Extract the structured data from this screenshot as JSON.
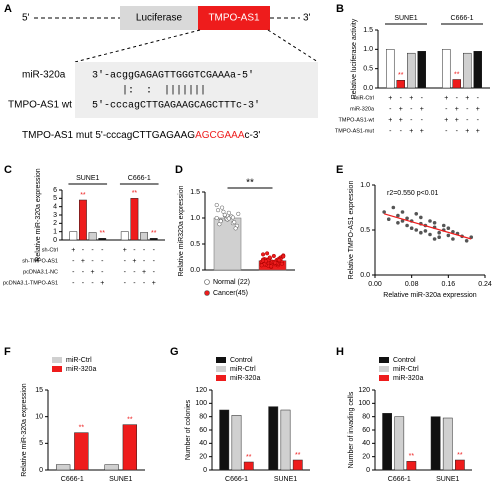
{
  "diagram": {
    "panel": "A",
    "five_prime": "5'",
    "three_prime": "3'",
    "box_left": "Luciferase",
    "box_right": "TMPO-AS1",
    "mirna_label": "miR-320a",
    "mirna_seq": "3'-acggGAGAGTTGGGTCGAAAa-5'",
    "pairing": "     |:  :  |||||||",
    "wt_label": "TMPO-AS1 wt",
    "wt_seq": "5'-cccagCTTGAGAAGCAGCTTTc-3'",
    "mut_prefix": "TMPO-AS1 mut 5'-cccagCTTGAGAAG",
    "mut_red": "AGCGAAA",
    "mut_suffix": "c-3'"
  },
  "chart_data": [
    {
      "type": "bar",
      "panel": "B",
      "y_label": "Relative luciferase activity",
      "categories": [
        "SUNE1",
        "C666-1"
      ],
      "series": [
        {
          "color": "#ffffff",
          "values": [
            1.0,
            1.0
          ]
        },
        {
          "color": "#ee1c1c",
          "values": [
            0.2,
            0.22
          ],
          "significance": [
            "**",
            "**"
          ]
        },
        {
          "color": "#d0d0d0",
          "values": [
            0.9,
            0.9
          ]
        },
        {
          "color": "#111111",
          "values": [
            0.95,
            0.95
          ]
        }
      ],
      "ylim": [
        0,
        1.5
      ],
      "yticks": [
        {
          "value": 0,
          "label": "0.0"
        },
        0.5,
        {
          "value": 1,
          "label": "1.0"
        },
        1.5
      ],
      "table": {
        "rows": [
          {
            "label": "miR-Ctrl",
            "signs": [
              "+",
              "-",
              "+",
              "-",
              "+",
              "-",
              "+",
              "-"
            ]
          },
          {
            "label": "miR-320a",
            "signs": [
              "-",
              "+",
              "-",
              "+",
              "-",
              "+",
              "-",
              "+"
            ]
          },
          {
            "label": "TMPO-AS1-wt",
            "signs": [
              "+",
              "+",
              "-",
              "-",
              "+",
              "+",
              "-",
              "-"
            ]
          },
          {
            "label": "TMPO-AS1-mut",
            "signs": [
              "-",
              "-",
              "+",
              "+",
              "-",
              "-",
              "+",
              "+"
            ]
          }
        ]
      }
    },
    {
      "type": "bar",
      "panel": "C",
      "y_label": "Relative miR-320a expression",
      "categories": [
        "SUNE1",
        "C666-1"
      ],
      "series": [
        {
          "color": "#ffffff",
          "values": [
            1.0,
            1.0
          ]
        },
        {
          "color": "#ee1c1c",
          "values": [
            4.8,
            5.0
          ],
          "significance": [
            "**",
            "**"
          ]
        },
        {
          "color": "#d0d0d0",
          "values": [
            0.9,
            0.9
          ]
        },
        {
          "color": "#111111",
          "values": [
            0.2,
            0.2
          ],
          "significance": [
            "**",
            "**"
          ]
        }
      ],
      "ylim": [
        0,
        6
      ],
      "yticks": [
        0,
        1,
        2,
        3,
        4,
        5,
        6
      ],
      "table": {
        "rows": [
          {
            "label": "sh-Ctrl",
            "signs": [
              "+",
              "-",
              "-",
              "-",
              "+",
              "-",
              "-",
              "-"
            ]
          },
          {
            "label": "sh-TMPO-AS1",
            "signs": [
              "-",
              "+",
              "-",
              "-",
              "-",
              "+",
              "-",
              "-"
            ]
          },
          {
            "label": "pcDNA3.1-NC",
            "signs": [
              "-",
              "-",
              "+",
              "-",
              "-",
              "-",
              "+",
              "-"
            ]
          },
          {
            "label": "pcDNA3.1-TMPO-AS1",
            "signs": [
              "-",
              "-",
              "-",
              "+",
              "-",
              "-",
              "-",
              "+"
            ]
          }
        ]
      }
    },
    {
      "type": "dotbar",
      "panel": "D",
      "y_label": "Relative miR320a expression",
      "significance": "**",
      "series": [
        {
          "name": "Normal (22)",
          "color": "#d0d0d0",
          "values": [
            1.0
          ],
          "points": [
            1.0,
            0.95,
            1.05,
            1.1,
            0.9,
            0.85,
            1.15,
            1.2,
            0.98,
            1.02,
            0.92,
            1.08,
            0.88,
            1.12,
            0.97,
            1.03,
            0.8,
            1.25,
            0.94,
            1.06,
            0.99,
            1.01
          ]
        },
        {
          "name": "Cancer(45)",
          "color": "#ee1c1c",
          "values": [
            0.18
          ],
          "points": [
            0.12,
            0.18,
            0.22,
            0.15,
            0.09,
            0.25,
            0.3,
            0.2,
            0.14,
            0.11,
            0.17,
            0.28,
            0.21,
            0.08,
            0.13,
            0.19,
            0.24,
            0.16,
            0.1,
            0.23,
            0.27,
            0.12,
            0.15,
            0.2,
            0.18,
            0.06,
            0.14,
            0.22,
            0.26,
            0.11,
            0.19,
            0.16,
            0.13,
            0.21,
            0.09,
            0.17,
            0.24,
            0.15,
            0.2,
            0.12,
            0.18,
            0.32,
            0.07,
            0.14,
            0.19
          ]
        }
      ],
      "ylim": [
        0,
        1.5
      ],
      "yticks": [
        {
          "value": 0,
          "label": "0.0"
        },
        0.5,
        {
          "value": 1,
          "label": "1.0"
        },
        1.5
      ]
    },
    {
      "type": "scatter",
      "panel": "E",
      "x_label": "Relative miR-320a expression",
      "y_label": "Relative TMPO-AS1 expression",
      "annotation": "r2=0.550 p<0.01",
      "color": "#555555",
      "fit_color": "#ee1c1c",
      "x": [
        0.02,
        0.03,
        0.04,
        0.05,
        0.05,
        0.06,
        0.07,
        0.07,
        0.08,
        0.08,
        0.09,
        0.09,
        0.1,
        0.1,
        0.11,
        0.11,
        0.12,
        0.12,
        0.13,
        0.13,
        0.14,
        0.14,
        0.15,
        0.15,
        0.16,
        0.17,
        0.17,
        0.18,
        0.19,
        0.2,
        0.21,
        0.06,
        0.1,
        0.13,
        0.16
      ],
      "y": [
        0.7,
        0.62,
        0.75,
        0.58,
        0.66,
        0.7,
        0.55,
        0.63,
        0.6,
        0.52,
        0.68,
        0.5,
        0.57,
        0.64,
        0.49,
        0.55,
        0.6,
        0.45,
        0.53,
        0.58,
        0.47,
        0.42,
        0.55,
        0.5,
        0.44,
        0.48,
        0.4,
        0.46,
        0.43,
        0.38,
        0.42,
        0.6,
        0.47,
        0.4,
        0.52
      ],
      "fit": {
        "x": [
          0.02,
          0.21
        ],
        "y": [
          0.68,
          0.4
        ]
      },
      "xlim": [
        0,
        0.24
      ],
      "xticks": [
        {
          "value": 0,
          "label": "0.00"
        },
        {
          "value": 0.08,
          "label": "0.08"
        },
        {
          "value": 0.16,
          "label": "0.16"
        },
        {
          "value": 0.24,
          "label": "0.24"
        }
      ],
      "ylim": [
        0,
        1
      ],
      "yticks": [
        {
          "value": 0,
          "label": "0.0"
        },
        0.5,
        {
          "value": 1,
          "label": "1.0"
        }
      ]
    },
    {
      "type": "bar",
      "panel": "F",
      "y_label": "Relative miR-320a expression",
      "categories": [
        "C666-1",
        "SUNE1"
      ],
      "series": [
        {
          "name": "miR-Ctrl",
          "color": "#d0d0d0",
          "values": [
            1,
            1
          ]
        },
        {
          "name": "miR-320a",
          "color": "#ee1c1c",
          "values": [
            7,
            8.5
          ],
          "significance": [
            "**",
            "**"
          ]
        }
      ],
      "ylim": [
        0,
        15
      ],
      "yticks": [
        0,
        5,
        10,
        15
      ]
    },
    {
      "type": "bar",
      "panel": "G",
      "y_label": "Number of colonies",
      "categories": [
        "C666-1",
        "SUNE1"
      ],
      "series": [
        {
          "name": "Control",
          "color": "#111111",
          "values": [
            90,
            95
          ]
        },
        {
          "name": "miR-Ctrl",
          "color": "#d0d0d0",
          "values": [
            82,
            90
          ]
        },
        {
          "name": "miR-320a",
          "color": "#ee1c1c",
          "values": [
            12,
            15
          ],
          "significance": [
            "**",
            "**"
          ]
        }
      ],
      "ylim": [
        0,
        120
      ],
      "yticks": [
        0,
        20,
        40,
        60,
        80,
        100,
        120
      ]
    },
    {
      "type": "bar",
      "panel": "H",
      "y_label": "Number of invading cells",
      "categories": [
        "C666-1",
        "SUNE1"
      ],
      "series": [
        {
          "name": "Control",
          "color": "#111111",
          "values": [
            85,
            80
          ]
        },
        {
          "name": "miR-Ctrl",
          "color": "#d0d0d0",
          "values": [
            80,
            78
          ]
        },
        {
          "name": "miR-320a",
          "color": "#ee1c1c",
          "values": [
            13,
            15
          ],
          "significance": [
            "**",
            "**"
          ]
        }
      ],
      "ylim": [
        0,
        120
      ],
      "yticks": [
        0,
        20,
        40,
        60,
        80,
        100,
        120
      ]
    }
  ]
}
